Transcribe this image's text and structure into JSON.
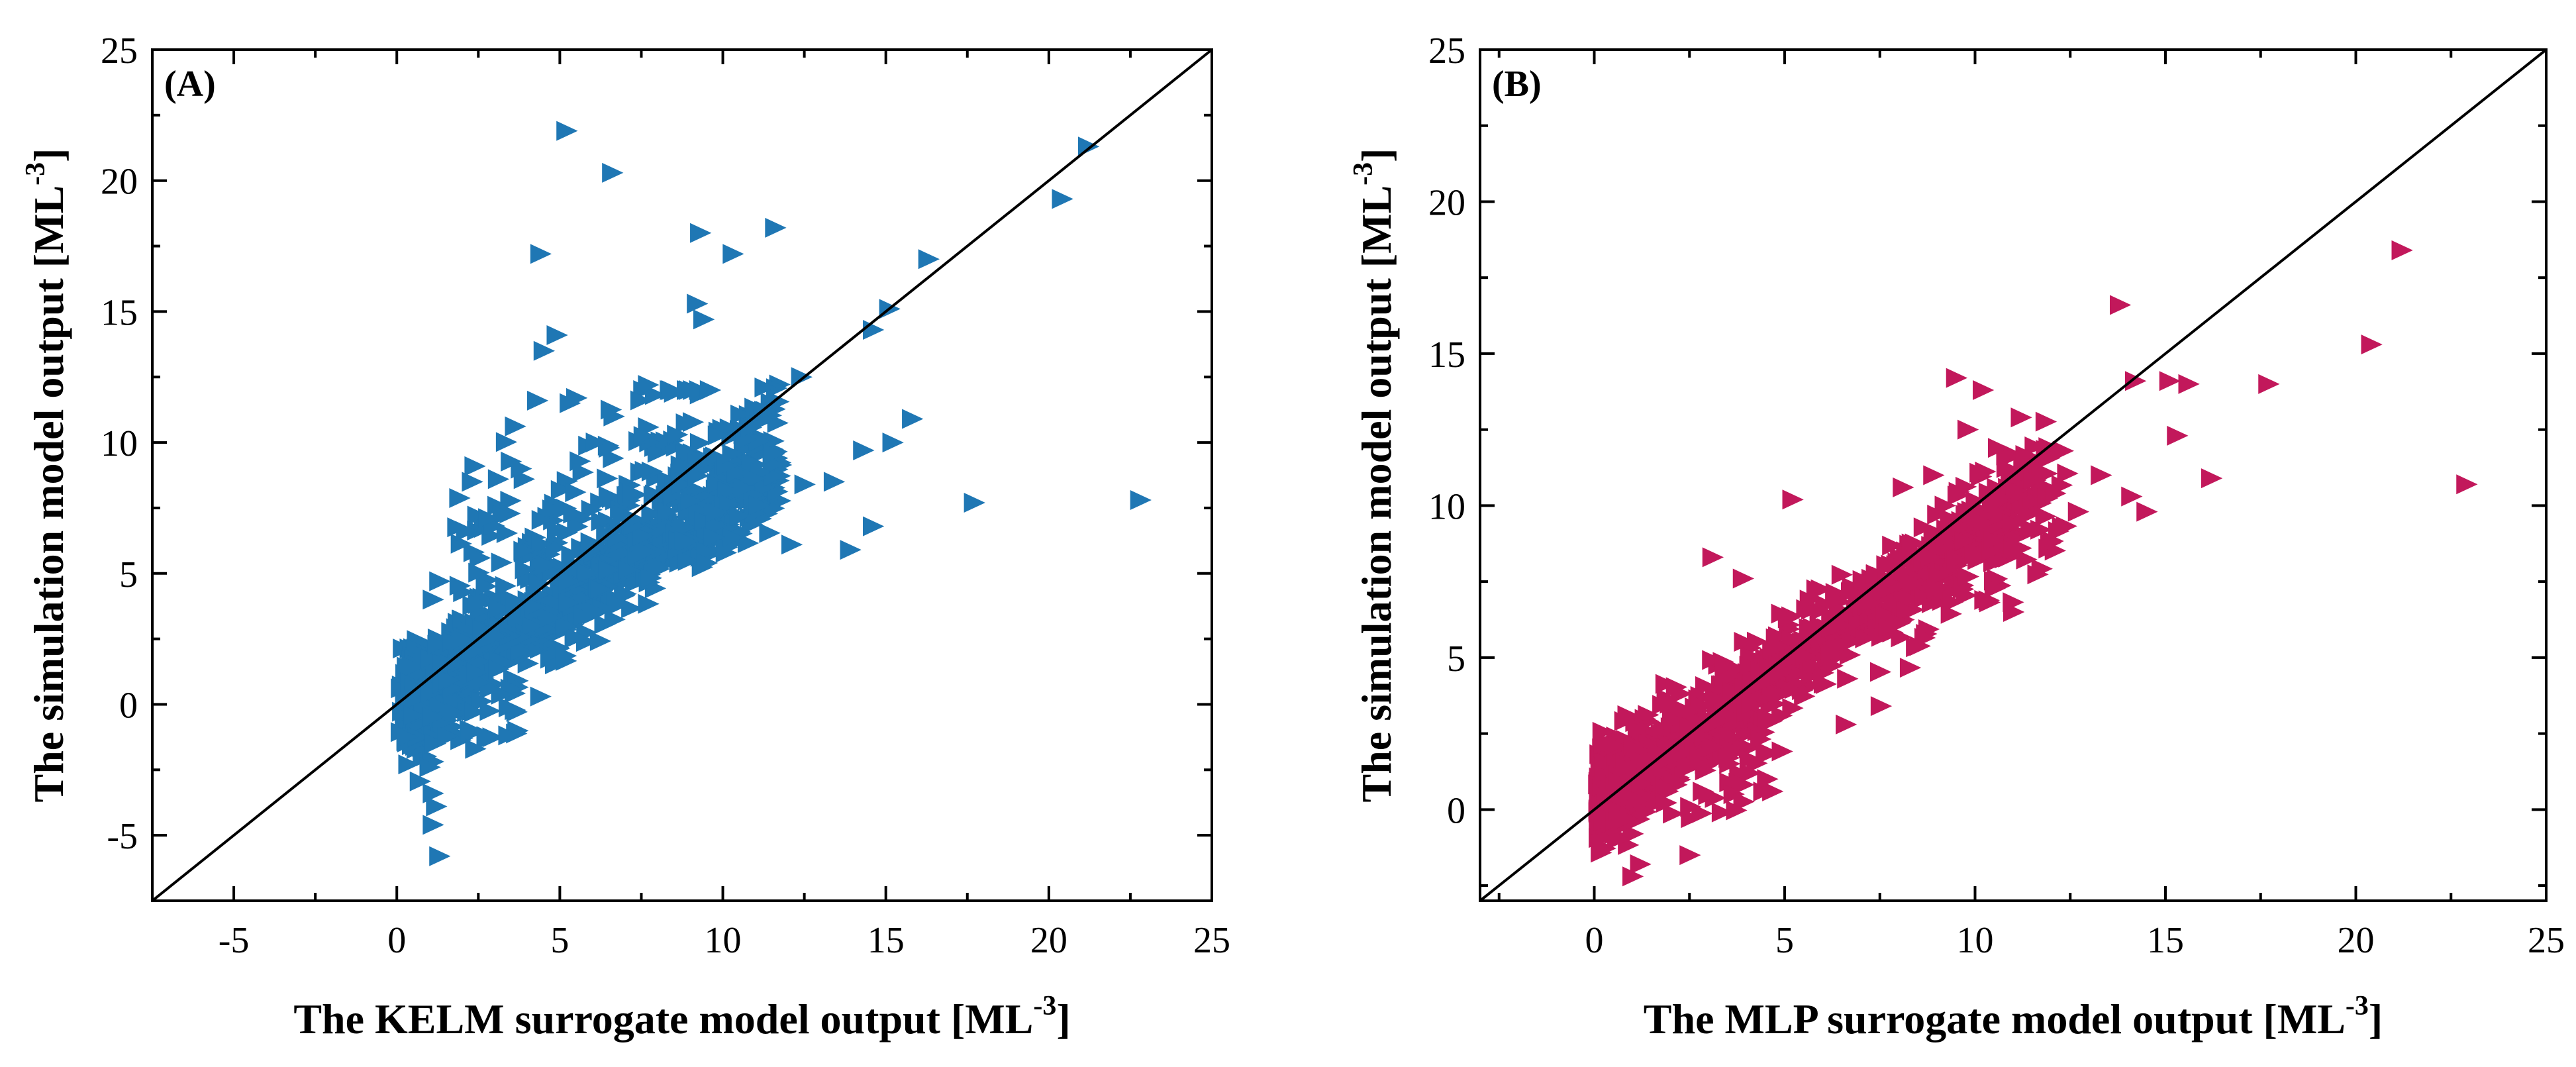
{
  "chart_data": [
    {
      "type": "scatter",
      "panel_label": "(A)",
      "xlabel": "The KELM surrogate model output [ML",
      "ylabel": "The simulation model output [ML",
      "unit_exponent": "-3",
      "unit_close": "]",
      "xlim": [
        -7.5,
        25
      ],
      "ylim": [
        -7.5,
        25
      ],
      "xticks": [
        -5,
        0,
        5,
        10,
        15,
        20,
        25
      ],
      "yticks": [
        -5,
        0,
        5,
        10,
        15,
        20,
        25
      ],
      "xtick_labels": [
        "-5",
        "0",
        "5",
        "10",
        "15",
        "20",
        "25"
      ],
      "ytick_labels": [
        "-5",
        "0",
        "5",
        "10",
        "15",
        "20",
        "25"
      ],
      "marker": "triangle-right",
      "color": "#1f77b4",
      "reference_line": "y = x",
      "outliers": [
        [
          5.2,
          21.9
        ],
        [
          6.6,
          20.3
        ],
        [
          21.2,
          21.3
        ],
        [
          20.4,
          19.3
        ],
        [
          4.4,
          17.2
        ],
        [
          9.3,
          18.0
        ],
        [
          10.3,
          17.2
        ],
        [
          11.6,
          18.2
        ],
        [
          16.3,
          17.0
        ],
        [
          4.5,
          13.5
        ],
        [
          4.9,
          14.1
        ],
        [
          9.2,
          15.3
        ],
        [
          9.4,
          14.7
        ],
        [
          12.4,
          12.5
        ],
        [
          15.1,
          15.1
        ],
        [
          14.6,
          14.3
        ],
        [
          15.8,
          10.9
        ],
        [
          14.3,
          9.7
        ],
        [
          15.2,
          10.0
        ],
        [
          12.5,
          8.4
        ],
        [
          13.4,
          8.5
        ],
        [
          17.7,
          7.7
        ],
        [
          22.8,
          7.8
        ],
        [
          12.1,
          6.1
        ],
        [
          13.9,
          5.9
        ],
        [
          14.6,
          6.8
        ],
        [
          10.5,
          7.2
        ],
        [
          11.1,
          7.6
        ],
        [
          9.5,
          5.4
        ],
        [
          4.3,
          11.6
        ],
        [
          5.3,
          11.5
        ],
        [
          5.5,
          11.7
        ],
        [
          7.7,
          12.2
        ],
        [
          8.5,
          11.9
        ],
        [
          9.6,
          12.0
        ],
        [
          6.5,
          9.8
        ],
        [
          6.1,
          10.0
        ],
        [
          2.3,
          8.5
        ],
        [
          3.1,
          8.6
        ],
        [
          3.8,
          9.0
        ],
        [
          1.1,
          4.0
        ],
        [
          1.3,
          4.7
        ],
        [
          1.0,
          -2.4
        ],
        [
          1.1,
          -3.4
        ],
        [
          1.2,
          -3.9
        ],
        [
          1.1,
          -4.6
        ],
        [
          1.3,
          -5.8
        ],
        [
          2.4,
          -1.7
        ]
      ]
    },
    {
      "type": "scatter",
      "panel_label": "(B)",
      "xlabel": "The MLP surrogate model output [ML",
      "ylabel": "The simulation model output [ML",
      "unit_exponent": "-3",
      "unit_close": "]",
      "xlim": [
        -3,
        25
      ],
      "ylim": [
        -3,
        25
      ],
      "xticks": [
        0,
        5,
        10,
        15,
        20,
        25
      ],
      "yticks": [
        0,
        5,
        10,
        15,
        20,
        25
      ],
      "xtick_labels": [
        "0",
        "5",
        "10",
        "15",
        "20",
        "25"
      ],
      "ytick_labels": [
        "0",
        "5",
        "10",
        "15",
        "20",
        "25"
      ],
      "marker": "triangle-right",
      "color": "#c2185b",
      "reference_line": "y = x",
      "outliers": [
        [
          21.2,
          18.4
        ],
        [
          13.8,
          16.6
        ],
        [
          20.4,
          15.3
        ],
        [
          22.9,
          10.7
        ],
        [
          17.7,
          14.0
        ],
        [
          14.2,
          14.1
        ],
        [
          15.1,
          14.1
        ],
        [
          15.6,
          14.0
        ],
        [
          15.3,
          12.3
        ],
        [
          16.2,
          10.9
        ],
        [
          14.1,
          10.3
        ],
        [
          14.5,
          9.8
        ],
        [
          13.3,
          11.0
        ],
        [
          12.7,
          9.8
        ],
        [
          12.1,
          10.4
        ],
        [
          11.2,
          8.6
        ],
        [
          11.0,
          6.5
        ],
        [
          9.5,
          14.2
        ],
        [
          10.2,
          13.8
        ],
        [
          9.8,
          12.5
        ],
        [
          11.2,
          12.9
        ],
        [
          5.2,
          10.2
        ],
        [
          3.1,
          8.3
        ],
        [
          3.9,
          7.6
        ],
        [
          6.6,
          2.8
        ],
        [
          2.5,
          -1.5
        ],
        [
          1.0,
          -2.2
        ],
        [
          1.2,
          -1.8
        ],
        [
          8.1,
          10.6
        ],
        [
          8.9,
          11.0
        ],
        [
          9.2,
          10.0
        ],
        [
          10.6,
          11.9
        ],
        [
          12.3,
          11.8
        ]
      ]
    }
  ]
}
